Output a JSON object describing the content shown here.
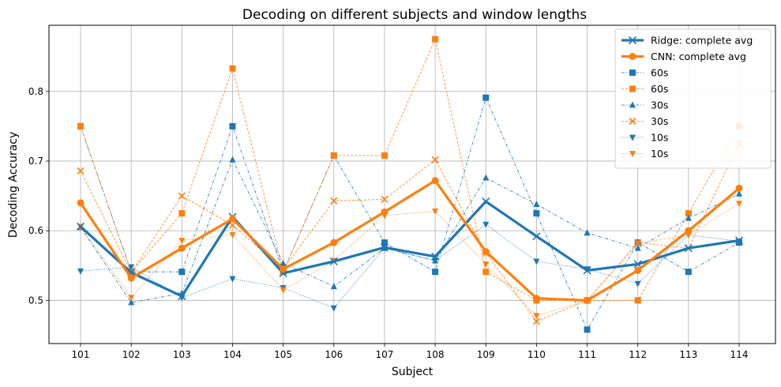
{
  "chart_data": {
    "type": "line",
    "title": "Decoding on different subjects and window lengths",
    "xlabel": "Subject",
    "ylabel": "Decoding Accuracy",
    "categories": [
      "101",
      "102",
      "103",
      "104",
      "105",
      "106",
      "107",
      "108",
      "109",
      "110",
      "111",
      "112",
      "113",
      "114"
    ],
    "ylim": [
      0.438,
      0.895
    ],
    "yticks": [
      "0.5",
      "0.6",
      "0.7",
      "0.8"
    ],
    "grid": true,
    "legend_position": "top-right",
    "colors": {
      "blue": "#1f77b4",
      "orange": "#ff7f0e"
    },
    "series": [
      {
        "name": "60s",
        "color": "#1f77b4",
        "marker": "square",
        "style": "dashdot",
        "values": [
          0.75,
          0.541,
          0.541,
          0.75,
          0.541,
          0.708,
          0.583,
          0.541,
          0.791,
          0.625,
          0.458,
          0.583,
          0.541,
          0.583
        ]
      },
      {
        "name": "60s",
        "color": "#ff7f0e",
        "marker": "square",
        "style": "dashed",
        "values": [
          0.75,
          0.541,
          0.625,
          0.833,
          0.541,
          0.708,
          0.708,
          0.875,
          0.541,
          0.5,
          0.5,
          0.5,
          0.625,
          0.75
        ]
      },
      {
        "name": "30s",
        "color": "#1f77b4",
        "marker": "triangle-up",
        "style": "dashdot",
        "values": [
          0.605,
          0.497,
          0.51,
          0.702,
          0.553,
          0.52,
          0.575,
          0.557,
          0.676,
          0.638,
          0.597,
          0.575,
          0.618,
          0.653
        ]
      },
      {
        "name": "30s",
        "color": "#ff7f0e",
        "marker": "x",
        "style": "dashed",
        "values": [
          0.686,
          0.54,
          0.65,
          0.608,
          0.545,
          0.643,
          0.645,
          0.702,
          0.568,
          0.47,
          0.5,
          0.583,
          0.575,
          0.725
        ]
      },
      {
        "name": "10s",
        "color": "#1f77b4",
        "marker": "triangle-down",
        "style": "dotted",
        "values": [
          0.542,
          0.548,
          0.504,
          0.531,
          0.518,
          0.489,
          0.575,
          0.557,
          0.609,
          0.556,
          0.545,
          0.524,
          0.594,
          0.585
        ]
      },
      {
        "name": "10s",
        "color": "#ff7f0e",
        "marker": "triangle-down",
        "style": "dotted",
        "values": [
          0.606,
          0.504,
          0.586,
          0.594,
          0.515,
          0.557,
          0.622,
          0.628,
          0.552,
          0.478,
          0.5,
          0.582,
          0.594,
          0.639
        ]
      },
      {
        "name": "Ridge: complete avg",
        "color": "#1f77b4",
        "marker": "x",
        "style": "solid-thick",
        "values": [
          0.606,
          0.54,
          0.506,
          0.62,
          0.539,
          0.556,
          0.576,
          0.563,
          0.642,
          0.592,
          0.543,
          0.552,
          0.575,
          0.586
        ]
      },
      {
        "name": "CNN: complete avg",
        "color": "#ff7f0e",
        "marker": "circle",
        "style": "solid-thick",
        "values": [
          0.64,
          0.532,
          0.575,
          0.617,
          0.545,
          0.583,
          0.627,
          0.672,
          0.57,
          0.503,
          0.5,
          0.543,
          0.6,
          0.661
        ]
      }
    ],
    "legend": [
      {
        "label": "Ridge: complete avg",
        "series": 6
      },
      {
        "label": "CNN: complete avg",
        "series": 7
      },
      {
        "label": "60s",
        "series": 0
      },
      {
        "label": "60s",
        "series": 1
      },
      {
        "label": "30s",
        "series": 2
      },
      {
        "label": "30s",
        "series": 3
      },
      {
        "label": "10s",
        "series": 4
      },
      {
        "label": "10s",
        "series": 5
      }
    ]
  }
}
